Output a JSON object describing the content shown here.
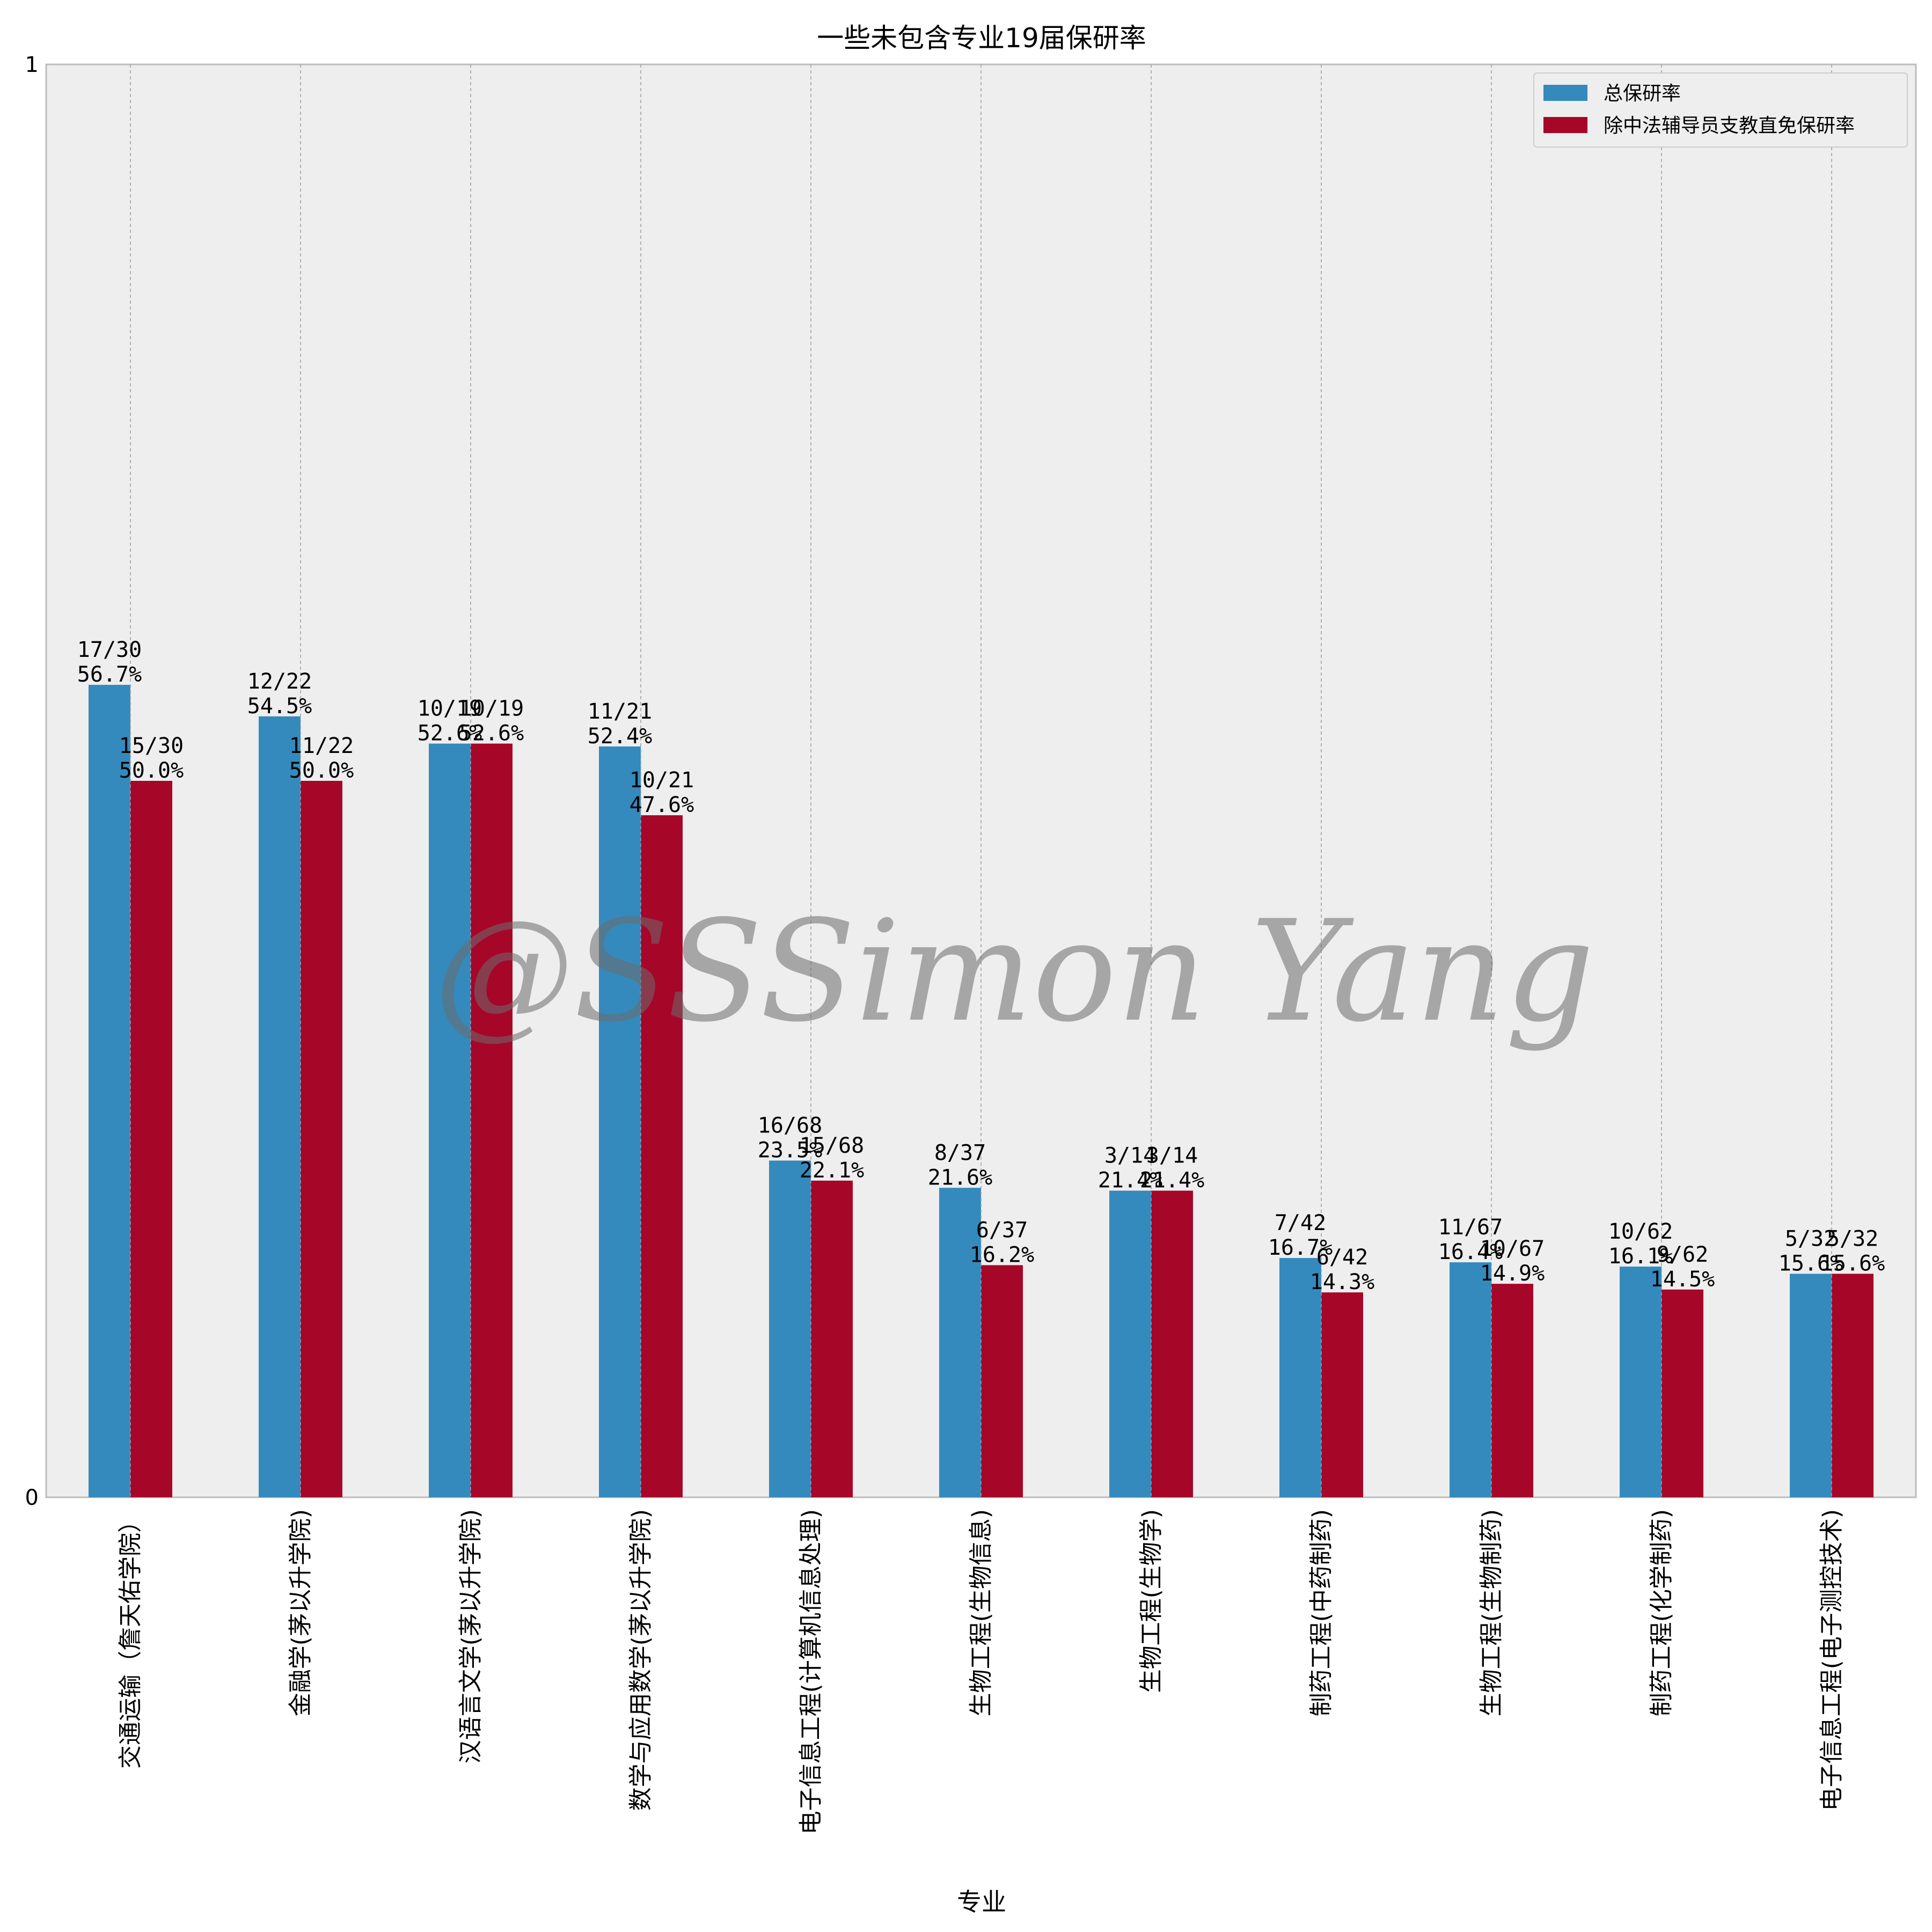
{
  "chart_data": {
    "type": "bar",
    "title": "一些未包含专业19届保研率",
    "xlabel": "专业",
    "ylabel": "",
    "ylim": [
      0,
      1
    ],
    "yticks": [
      "0",
      "1"
    ],
    "grid": "vertical",
    "legend_position": "top-right",
    "categories": [
      "交通运输（詹天佑学院）",
      "金融学(茅以升学院)",
      "汉语言文学(茅以升学院)",
      "数学与应用数学(茅以升学院)",
      "电子信息工程(计算机信息处理)",
      "生物工程(生物信息)",
      "生物工程(生物学)",
      "制药工程(中药制药)",
      "生物工程(生物制药)",
      "制药工程(化学制药)",
      "电子信息工程(电子测控技术)"
    ],
    "series": [
      {
        "name": "总保研率",
        "color": "#348abd",
        "values": [
          0.567,
          0.545,
          0.526,
          0.524,
          0.235,
          0.216,
          0.214,
          0.167,
          0.164,
          0.161,
          0.156
        ],
        "labels_top": [
          "17/30",
          "12/22",
          "10/19",
          "11/21",
          "16/68",
          "8/37",
          "3/14",
          "7/42",
          "11/67",
          "10/62",
          "5/32"
        ],
        "labels_bottom": [
          "56.7%",
          "54.5%",
          "52.6%",
          "52.4%",
          "23.5%",
          "21.6%",
          "21.4%",
          "16.7%",
          "16.4%",
          "16.1%",
          "15.6%"
        ]
      },
      {
        "name": "除中法辅导员支教直免保研率",
        "color": "#a60628",
        "values": [
          0.5,
          0.5,
          0.526,
          0.476,
          0.221,
          0.162,
          0.214,
          0.143,
          0.149,
          0.145,
          0.156
        ],
        "labels_top": [
          "15/30",
          "11/22",
          "10/19",
          "10/21",
          "15/68",
          "6/37",
          "3/14",
          "6/42",
          "10/67",
          "9/62",
          "5/32"
        ],
        "labels_bottom": [
          "50.0%",
          "50.0%",
          "52.6%",
          "47.6%",
          "22.1%",
          "16.2%",
          "21.4%",
          "14.3%",
          "14.9%",
          "14.5%",
          "15.6%"
        ]
      }
    ]
  },
  "watermark": "@SSSimon Yang"
}
